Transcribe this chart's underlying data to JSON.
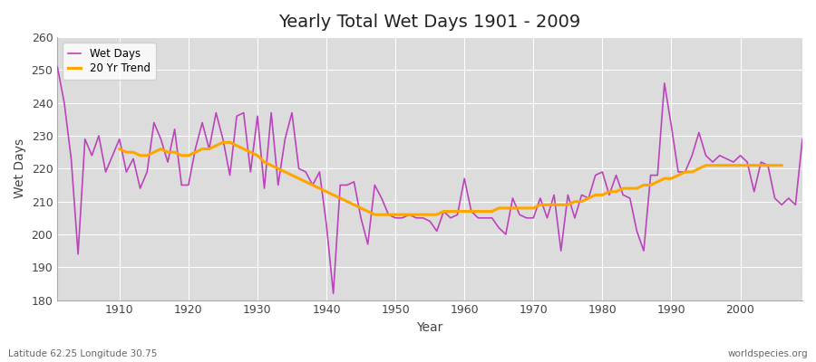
{
  "title": "Yearly Total Wet Days 1901 - 2009",
  "xlabel": "Year",
  "ylabel": "Wet Days",
  "subtitle_left": "Latitude 62.25 Longitude 30.75",
  "subtitle_right": "worldspecies.org",
  "line_color": "#BB44BB",
  "trend_color": "#FFA500",
  "bg_color": "#FFFFFF",
  "plot_bg_color": "#DCDCDC",
  "grid_color": "#FFFFFF",
  "ylim": [
    180,
    260
  ],
  "yticks": [
    180,
    190,
    200,
    210,
    220,
    230,
    240,
    250,
    260
  ],
  "years": [
    1901,
    1902,
    1903,
    1904,
    1905,
    1906,
    1907,
    1908,
    1909,
    1910,
    1911,
    1912,
    1913,
    1914,
    1915,
    1916,
    1917,
    1918,
    1919,
    1920,
    1921,
    1922,
    1923,
    1924,
    1925,
    1926,
    1927,
    1928,
    1929,
    1930,
    1931,
    1932,
    1933,
    1934,
    1935,
    1936,
    1937,
    1938,
    1939,
    1940,
    1941,
    1942,
    1943,
    1944,
    1945,
    1946,
    1947,
    1948,
    1949,
    1950,
    1951,
    1952,
    1953,
    1954,
    1955,
    1956,
    1957,
    1958,
    1959,
    1960,
    1961,
    1962,
    1963,
    1964,
    1965,
    1966,
    1967,
    1968,
    1969,
    1970,
    1971,
    1972,
    1973,
    1974,
    1975,
    1976,
    1977,
    1978,
    1979,
    1980,
    1981,
    1982,
    1983,
    1984,
    1985,
    1986,
    1987,
    1988,
    1989,
    1990,
    1991,
    1992,
    1993,
    1994,
    1995,
    1996,
    1997,
    1998,
    1999,
    2000,
    2001,
    2002,
    2003,
    2004,
    2005,
    2006,
    2007,
    2008,
    2009
  ],
  "wet_days": [
    251,
    240,
    223,
    194,
    229,
    224,
    230,
    219,
    224,
    229,
    219,
    223,
    214,
    219,
    234,
    229,
    222,
    232,
    215,
    215,
    226,
    234,
    226,
    237,
    229,
    218,
    236,
    237,
    219,
    236,
    214,
    237,
    215,
    229,
    237,
    220,
    219,
    215,
    219,
    203,
    182,
    215,
    215,
    216,
    205,
    197,
    215,
    211,
    206,
    205,
    205,
    206,
    205,
    205,
    204,
    201,
    207,
    205,
    206,
    217,
    207,
    205,
    205,
    205,
    202,
    200,
    211,
    206,
    205,
    205,
    211,
    205,
    212,
    195,
    212,
    205,
    212,
    211,
    218,
    219,
    212,
    218,
    212,
    211,
    201,
    195,
    218,
    218,
    246,
    233,
    219,
    219,
    224,
    231,
    224,
    222,
    224,
    223,
    222,
    224,
    222,
    213,
    222,
    221,
    211,
    209,
    211,
    209,
    229
  ],
  "trend": [
    null,
    null,
    null,
    null,
    null,
    null,
    null,
    null,
    null,
    226,
    225,
    225,
    224,
    224,
    225,
    226,
    225,
    225,
    224,
    224,
    225,
    226,
    226,
    227,
    228,
    228,
    227,
    226,
    225,
    224,
    222,
    221,
    220,
    219,
    218,
    217,
    216,
    215,
    214,
    213,
    212,
    211,
    210,
    209,
    208,
    207,
    206,
    206,
    206,
    206,
    206,
    206,
    206,
    206,
    206,
    206,
    207,
    207,
    207,
    207,
    207,
    207,
    207,
    207,
    208,
    208,
    208,
    208,
    208,
    208,
    209,
    209,
    209,
    209,
    209,
    210,
    210,
    211,
    212,
    212,
    213,
    213,
    214,
    214,
    214,
    215,
    215,
    216,
    217,
    217,
    218,
    219,
    219,
    220,
    221,
    221,
    221,
    221,
    221,
    221,
    221,
    221,
    221,
    221,
    221,
    221,
    null,
    null,
    null
  ]
}
